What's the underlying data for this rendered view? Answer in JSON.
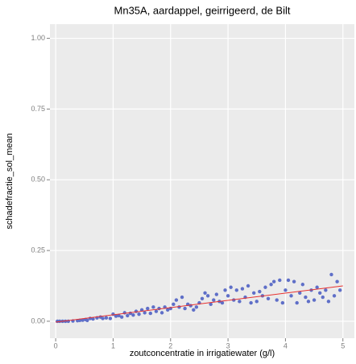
{
  "chart_data": {
    "type": "scatter",
    "title": "Mn35A, aardappel, geirrigeerd, de Bilt",
    "x_label": "zoutconcentratie in irrigatiewater (g/l)",
    "y_label": "schadefractie_sol_mean",
    "x": [
      0.03,
      0.07,
      0.12,
      0.17,
      0.22,
      0.3,
      0.38,
      0.42,
      0.47,
      0.52,
      0.55,
      0.6,
      0.65,
      0.72,
      0.78,
      0.82,
      0.88,
      0.95,
      1.0,
      1.05,
      1.1,
      1.15,
      1.2,
      1.25,
      1.3,
      1.35,
      1.4,
      1.45,
      1.5,
      1.55,
      1.6,
      1.65,
      1.7,
      1.75,
      1.8,
      1.85,
      1.9,
      1.95,
      2.0,
      2.05,
      2.1,
      2.15,
      2.2,
      2.25,
      2.3,
      2.35,
      2.4,
      2.45,
      2.5,
      2.55,
      2.6,
      2.65,
      2.7,
      2.75,
      2.8,
      2.85,
      2.9,
      2.95,
      3.0,
      3.05,
      3.1,
      3.15,
      3.2,
      3.25,
      3.3,
      3.35,
      3.4,
      3.45,
      3.5,
      3.55,
      3.6,
      3.65,
      3.7,
      3.75,
      3.8,
      3.85,
      3.9,
      3.95,
      4.0,
      4.05,
      4.1,
      4.15,
      4.2,
      4.25,
      4.3,
      4.35,
      4.4,
      4.45,
      4.5,
      4.55,
      4.6,
      4.65,
      4.7,
      4.75,
      4.8,
      4.85,
      4.9,
      4.95
    ],
    "values": [
      0,
      0,
      0,
      0,
      0,
      0.001,
      0.002,
      0.003,
      0.004,
      0.006,
      0.003,
      0.01,
      0.008,
      0.012,
      0.015,
      0.01,
      0.012,
      0.01,
      0.025,
      0.018,
      0.02,
      0.015,
      0.03,
      0.02,
      0.028,
      0.022,
      0.035,
      0.025,
      0.04,
      0.03,
      0.045,
      0.028,
      0.05,
      0.035,
      0.045,
      0.03,
      0.05,
      0.04,
      0.045,
      0.06,
      0.075,
      0.05,
      0.085,
      0.045,
      0.06,
      0.055,
      0.04,
      0.05,
      0.065,
      0.08,
      0.1,
      0.09,
      0.06,
      0.075,
      0.095,
      0.07,
      0.065,
      0.11,
      0.09,
      0.12,
      0.075,
      0.11,
      0.07,
      0.115,
      0.085,
      0.125,
      0.065,
      0.1,
      0.07,
      0.105,
      0.09,
      0.12,
      0.08,
      0.13,
      0.14,
      0.075,
      0.145,
      0.065,
      0.11,
      0.145,
      0.09,
      0.14,
      0.065,
      0.1,
      0.13,
      0.085,
      0.07,
      0.11,
      0.075,
      0.12,
      0.1,
      0.085,
      0.11,
      0.07,
      0.165,
      0.09,
      0.14,
      0.11
    ],
    "color": "#5f6fc8",
    "fit": {
      "x": [
        0,
        5
      ],
      "values": [
        -0.003,
        0.125
      ],
      "color": "#e8312f"
    },
    "xlim": [
      -0.1,
      5.2
    ],
    "ylim": [
      -0.06,
      1.05
    ],
    "xticks": [
      0,
      1,
      2,
      3,
      4,
      5
    ],
    "yticks": [
      {
        "value": 0,
        "label": "0.00"
      },
      {
        "value": 0.25,
        "label": "0.25"
      },
      {
        "value": 0.5,
        "label": "0.50"
      },
      {
        "value": 0.75,
        "label": "0.75"
      },
      {
        "value": 1,
        "label": "1.00"
      }
    ],
    "grid": true
  }
}
